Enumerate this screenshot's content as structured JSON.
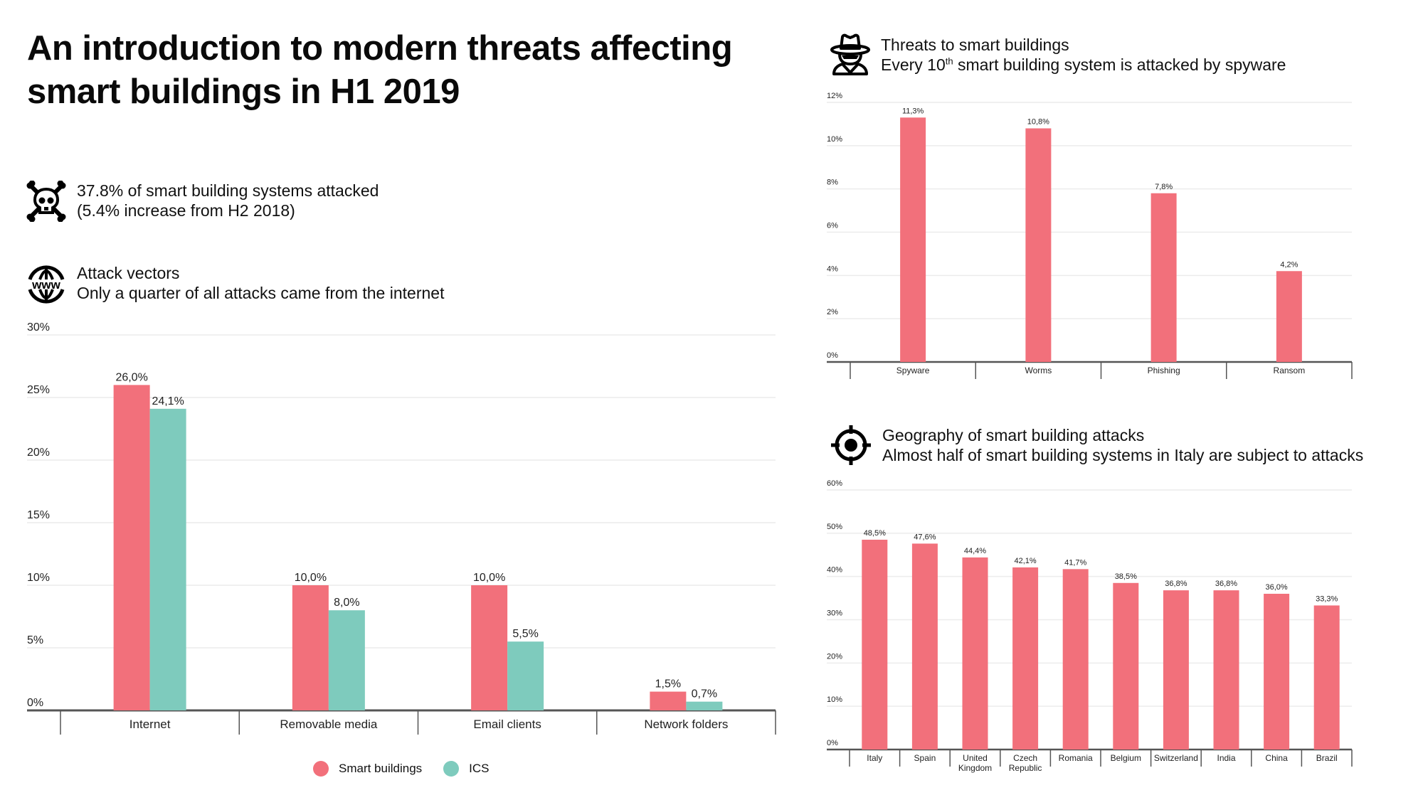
{
  "title": "An introduction to modern threats affecting smart buildings in H1 2019",
  "colors": {
    "smart_buildings": "#f2707b",
    "ics": "#7ecbbd",
    "grid": "#ececec",
    "axis": "#555555"
  },
  "stat": {
    "icon": "skull-crossbones-icon",
    "line1": "37.8% of smart building systems attacked",
    "line2": "(5.4% increase from H2 2018)"
  },
  "sections": {
    "attack_vectors": {
      "icon": "www-globe-icon",
      "heading": "Attack vectors",
      "subheading": "Only a quarter of all attacks came from the internet"
    },
    "threats": {
      "icon": "spy-hat-icon",
      "heading": "Threats to smart buildings",
      "subheading_pre": "Every 10",
      "subheading_sup": "th",
      "subheading_post": " smart building system is attacked by spyware"
    },
    "geography": {
      "icon": "crosshair-target-icon",
      "heading": "Geography of smart building attacks",
      "subheading": "Almost half of smart building systems in Italy are subject to attacks"
    }
  },
  "legend": [
    {
      "label": "Smart buildings",
      "color": "#f2707b"
    },
    {
      "label": "ICS",
      "color": "#7ecbbd"
    }
  ],
  "chart_data": [
    {
      "id": "attack_vectors",
      "type": "bar",
      "title": "Attack vectors",
      "categories": [
        "Internet",
        "Removable media",
        "Email clients",
        "Network folders"
      ],
      "series": [
        {
          "name": "Smart buildings",
          "color": "#f2707b",
          "values": [
            26.0,
            10.0,
            10.0,
            1.5
          ],
          "labels": [
            "26,0%",
            "10,0%",
            "10,0%",
            "1,5%"
          ]
        },
        {
          "name": "ICS",
          "color": "#7ecbbd",
          "values": [
            24.1,
            8.0,
            5.5,
            0.7
          ],
          "labels": [
            "24,1%",
            "8,0%",
            "5,5%",
            "0,7%"
          ]
        }
      ],
      "yticks": [
        0,
        5,
        10,
        15,
        20,
        25,
        30
      ],
      "ytick_labels": [
        "0%",
        "5%",
        "10%",
        "15%",
        "20%",
        "25%",
        "30%"
      ],
      "ylim": [
        0,
        30
      ],
      "xlabel": "",
      "ylabel": "",
      "grid": true,
      "legend": "bottom-center"
    },
    {
      "id": "threats",
      "type": "bar",
      "title": "Threats to smart buildings",
      "categories": [
        "Spyware",
        "Worms",
        "Phishing",
        "Ransom"
      ],
      "values": [
        11.3,
        10.8,
        7.8,
        4.2
      ],
      "labels": [
        "11,3%",
        "10,8%",
        "7,8%",
        "4,2%"
      ],
      "yticks": [
        0,
        2,
        4,
        6,
        8,
        10,
        12
      ],
      "ytick_labels": [
        "0%",
        "2%",
        "4%",
        "6%",
        "8%",
        "10%",
        "12%"
      ],
      "ylim": [
        0,
        12
      ],
      "xlabel": "",
      "ylabel": "",
      "grid": true
    },
    {
      "id": "geography",
      "type": "bar",
      "title": "Geography of smart building attacks",
      "categories": [
        "Italy",
        "Spain",
        "United Kingdom",
        "Czech Republic",
        "Romania",
        "Belgium",
        "Switzerland",
        "India",
        "China",
        "Brazil"
      ],
      "category_lines": [
        [
          "Italy"
        ],
        [
          "Spain"
        ],
        [
          "United",
          "Kingdom"
        ],
        [
          "Czech",
          "Republic"
        ],
        [
          "Romania"
        ],
        [
          "Belgium"
        ],
        [
          "Switzerland"
        ],
        [
          "India"
        ],
        [
          "China"
        ],
        [
          "Brazil"
        ]
      ],
      "values": [
        48.5,
        47.6,
        44.4,
        42.1,
        41.7,
        38.5,
        36.8,
        36.8,
        36.0,
        33.3
      ],
      "labels": [
        "48,5%",
        "47,6%",
        "44,4%",
        "42,1%",
        "41,7%",
        "38,5%",
        "36,8%",
        "36,8%",
        "36,0%",
        "33,3%"
      ],
      "yticks": [
        0,
        10,
        20,
        30,
        40,
        50,
        60
      ],
      "ytick_labels": [
        "0%",
        "10%",
        "20%",
        "30%",
        "40%",
        "50%",
        "60%"
      ],
      "ylim": [
        0,
        60
      ],
      "xlabel": "",
      "ylabel": "",
      "grid": true
    }
  ]
}
